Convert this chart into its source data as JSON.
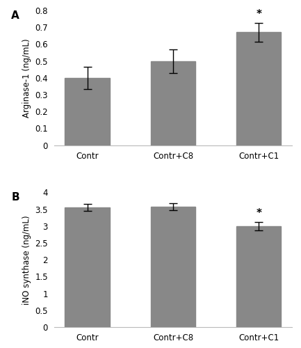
{
  "panel_A": {
    "categories": [
      "Contr",
      "Contr+C8",
      "Contr+C1"
    ],
    "values": [
      0.4,
      0.5,
      0.67
    ],
    "errors": [
      0.065,
      0.07,
      0.055
    ],
    "ylabel": "Arginase-1 (ng/mL)",
    "ylim": [
      0,
      0.8
    ],
    "yticks": [
      0,
      0.1,
      0.2,
      0.3,
      0.4,
      0.5,
      0.6,
      0.7,
      0.8
    ],
    "ytick_labels": [
      "0",
      "0.1",
      "0.2",
      "0.3",
      "0.4",
      "0.5",
      "0.6",
      "0.7",
      "0.8"
    ],
    "significant": [
      false,
      false,
      true
    ],
    "label": "A"
  },
  "panel_B": {
    "categories": [
      "Contr",
      "Contr+C8",
      "Contr+C1"
    ],
    "values": [
      3.55,
      3.58,
      3.0
    ],
    "errors": [
      0.1,
      0.1,
      0.12
    ],
    "ylabel": "iNO synthase (ng/mL)",
    "ylim": [
      0,
      4
    ],
    "yticks": [
      0,
      0.5,
      1.0,
      1.5,
      2.0,
      2.5,
      3.0,
      3.5,
      4.0
    ],
    "ytick_labels": [
      "0",
      "0.5",
      "1",
      "1.5",
      "2",
      "2.5",
      "3",
      "3.5",
      "4"
    ],
    "significant": [
      false,
      false,
      true
    ],
    "label": "B"
  },
  "bar_color": "#888888",
  "bar_width": 0.52,
  "background_color": "#ffffff",
  "tick_fontsize": 8.5,
  "label_fontsize": 8.5,
  "panel_label_fontsize": 11,
  "star_fontsize": 11
}
